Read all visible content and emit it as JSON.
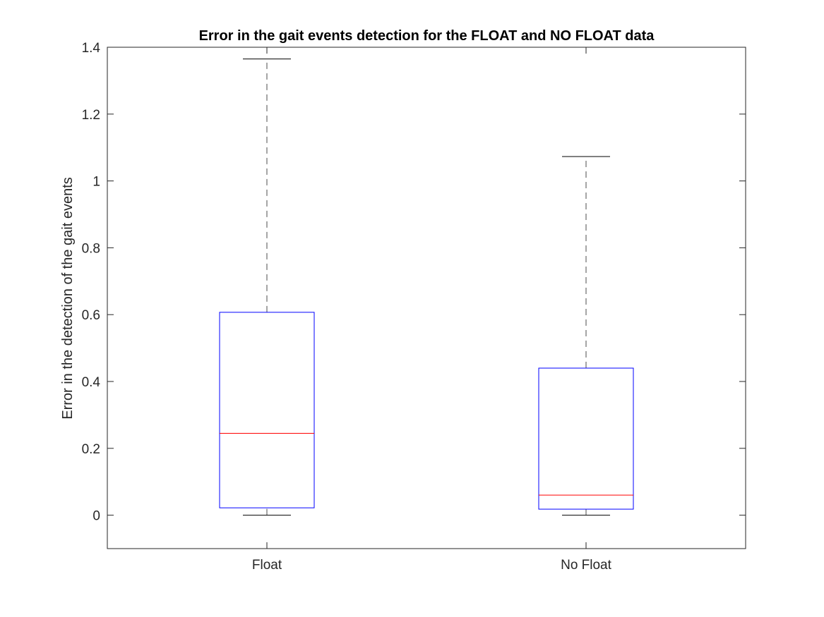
{
  "chart_data": {
    "type": "box",
    "title": "Error in the gait events detection for the FLOAT and NO FLOAT data",
    "xlabel": "",
    "ylabel": "Error in the detection of the gait events",
    "categories": [
      "Float",
      "No Float"
    ],
    "boxes": [
      {
        "category": "Float",
        "whisker_low": 0.0,
        "q1": 0.022,
        "median": 0.245,
        "q3": 0.607,
        "whisker_high": 1.365
      },
      {
        "category": "No Float",
        "whisker_low": 0.0,
        "q1": 0.018,
        "median": 0.06,
        "q3": 0.44,
        "whisker_high": 1.073
      }
    ],
    "ylim": [
      -0.1,
      1.4
    ],
    "yticks": [
      0,
      0.2,
      0.4,
      0.6,
      0.8,
      1,
      1.2,
      1.4
    ],
    "ytick_labels": [
      "0",
      "0.2",
      "0.4",
      "0.6",
      "0.8",
      "1",
      "1.2",
      "1.4"
    ],
    "grid": false,
    "colors": {
      "box": "#0000ff",
      "median": "#ff0000",
      "whisker": "#000000",
      "axis": "#262626"
    }
  }
}
